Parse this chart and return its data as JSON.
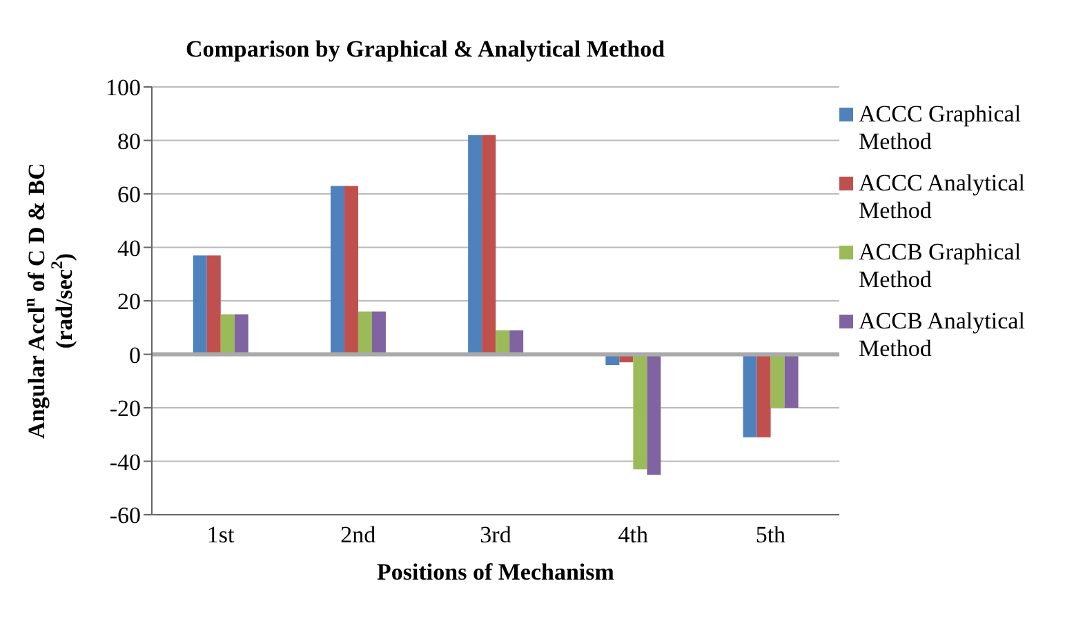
{
  "chart_data": {
    "type": "bar",
    "title": "Comparison by Graphical & Analytical Method",
    "xlabel": "Positions of Mechanism",
    "ylabel": "Angular Accl$^{n}$ of C D & BC (rad/sec$^{2}$)",
    "categories": [
      "1st",
      "2nd",
      "3rd",
      "4th",
      "5th"
    ],
    "series": [
      {
        "name": "ACCC Graphical Method",
        "color": "#4f81bd",
        "values": [
          37,
          63,
          82,
          -4,
          -31
        ]
      },
      {
        "name": "ACCC Analytical Method",
        "color": "#c0504d",
        "values": [
          37,
          63,
          82,
          -3,
          -31
        ]
      },
      {
        "name": "ACCB Graphical Method",
        "color": "#9bbb59",
        "values": [
          15,
          16,
          9,
          -43,
          -20
        ]
      },
      {
        "name": "ACCB Analytical Method",
        "color": "#8064a2",
        "values": [
          15,
          16,
          9,
          -45,
          -20
        ]
      }
    ],
    "ylim": [
      -60,
      100
    ],
    "yticks": [
      -60,
      -40,
      -20,
      0,
      20,
      40,
      60,
      80,
      100
    ],
    "grid": "y",
    "legend": "right"
  }
}
